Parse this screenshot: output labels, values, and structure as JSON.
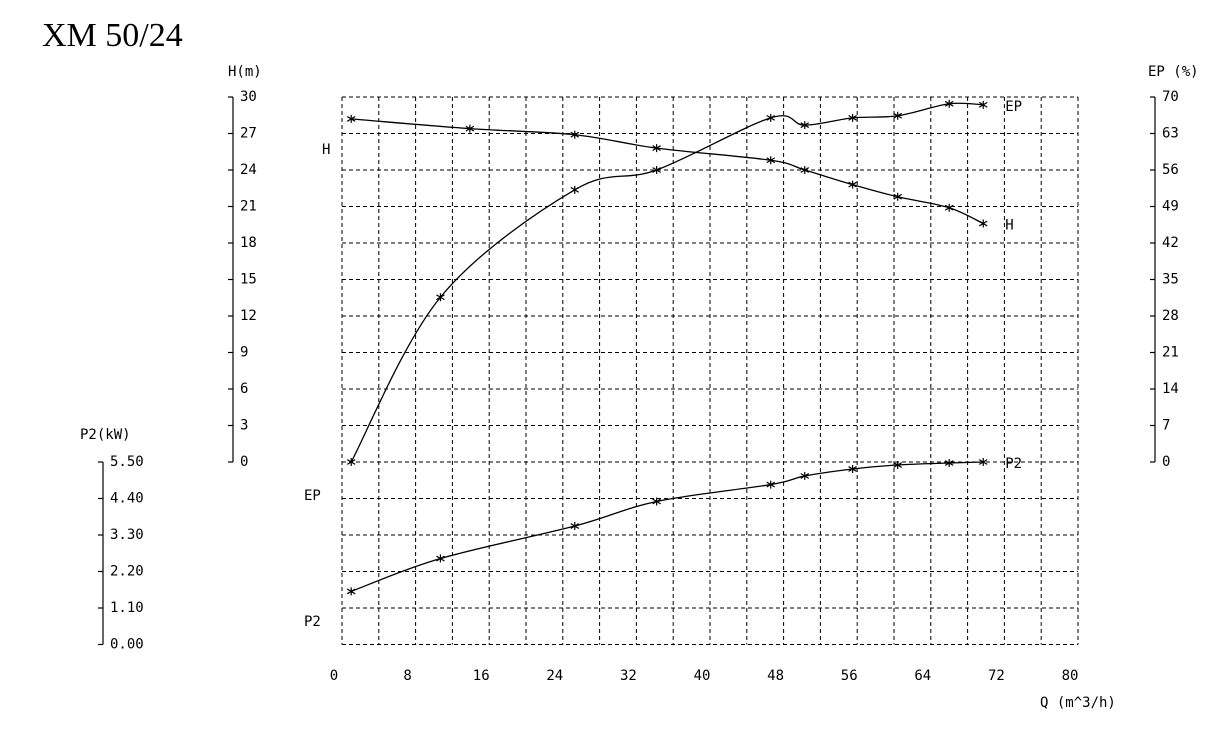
{
  "chart_data": {
    "type": "line",
    "title": "XM 50/24",
    "x_label": "Q (m^3/h)",
    "y_label": "H(m)",
    "y2_label": "EP (%)",
    "y3_label": "P2(kW)",
    "xlim": [
      0,
      80
    ],
    "xticks": [
      0,
      8,
      16,
      24,
      32,
      40,
      48,
      56,
      64,
      72,
      80
    ],
    "ylim": [
      0,
      30
    ],
    "yticks": [
      0,
      3,
      6,
      9,
      12,
      15,
      18,
      21,
      24,
      27,
      30
    ],
    "y2lim": [
      0,
      70
    ],
    "y2ticks": [
      0,
      7,
      14,
      21,
      28,
      35,
      42,
      49,
      56,
      63,
      70
    ],
    "y3lim": [
      0,
      5.5
    ],
    "y3ticks": [
      {
        "value": 0,
        "label": "0.00"
      },
      {
        "value": 1.1,
        "label": "1.10"
      },
      {
        "value": 2.2,
        "label": "2.20"
      },
      {
        "value": 3.3,
        "label": "3.30"
      },
      {
        "value": 4.4,
        "label": "4.40"
      },
      {
        "value": 5.5,
        "label": "5.50"
      }
    ],
    "grid": true,
    "series": [
      {
        "name": "H",
        "color": "#000000",
        "axis": "y",
        "x": [
          1,
          13.9,
          25.3,
          34.2,
          46.6,
          50.3,
          55.5,
          60.4,
          66,
          69.7
        ],
        "values": [
          28.2,
          27.4,
          26.9,
          25.8,
          24.8,
          24.0,
          22.8,
          21.8,
          20.9,
          19.6
        ]
      },
      {
        "name": "EP",
        "color": "#000000",
        "axis": "y2",
        "x": [
          1,
          10.7,
          25.3,
          34.2,
          46.6,
          50.3,
          55.5,
          60.4,
          66,
          69.7
        ],
        "values": [
          0,
          31.6,
          52.2,
          56.0,
          66.0,
          64.6,
          66.0,
          66.4,
          68.7,
          68.5
        ]
      },
      {
        "name": "P2",
        "color": "#000000",
        "axis": "y3",
        "x": [
          1,
          10.7,
          25.3,
          34.2,
          46.6,
          50.3,
          55.5,
          60.4,
          66,
          69.7
        ],
        "values": [
          1.6,
          2.59,
          3.57,
          4.31,
          4.82,
          5.08,
          5.29,
          5.41,
          5.47,
          5.5
        ]
      }
    ]
  }
}
